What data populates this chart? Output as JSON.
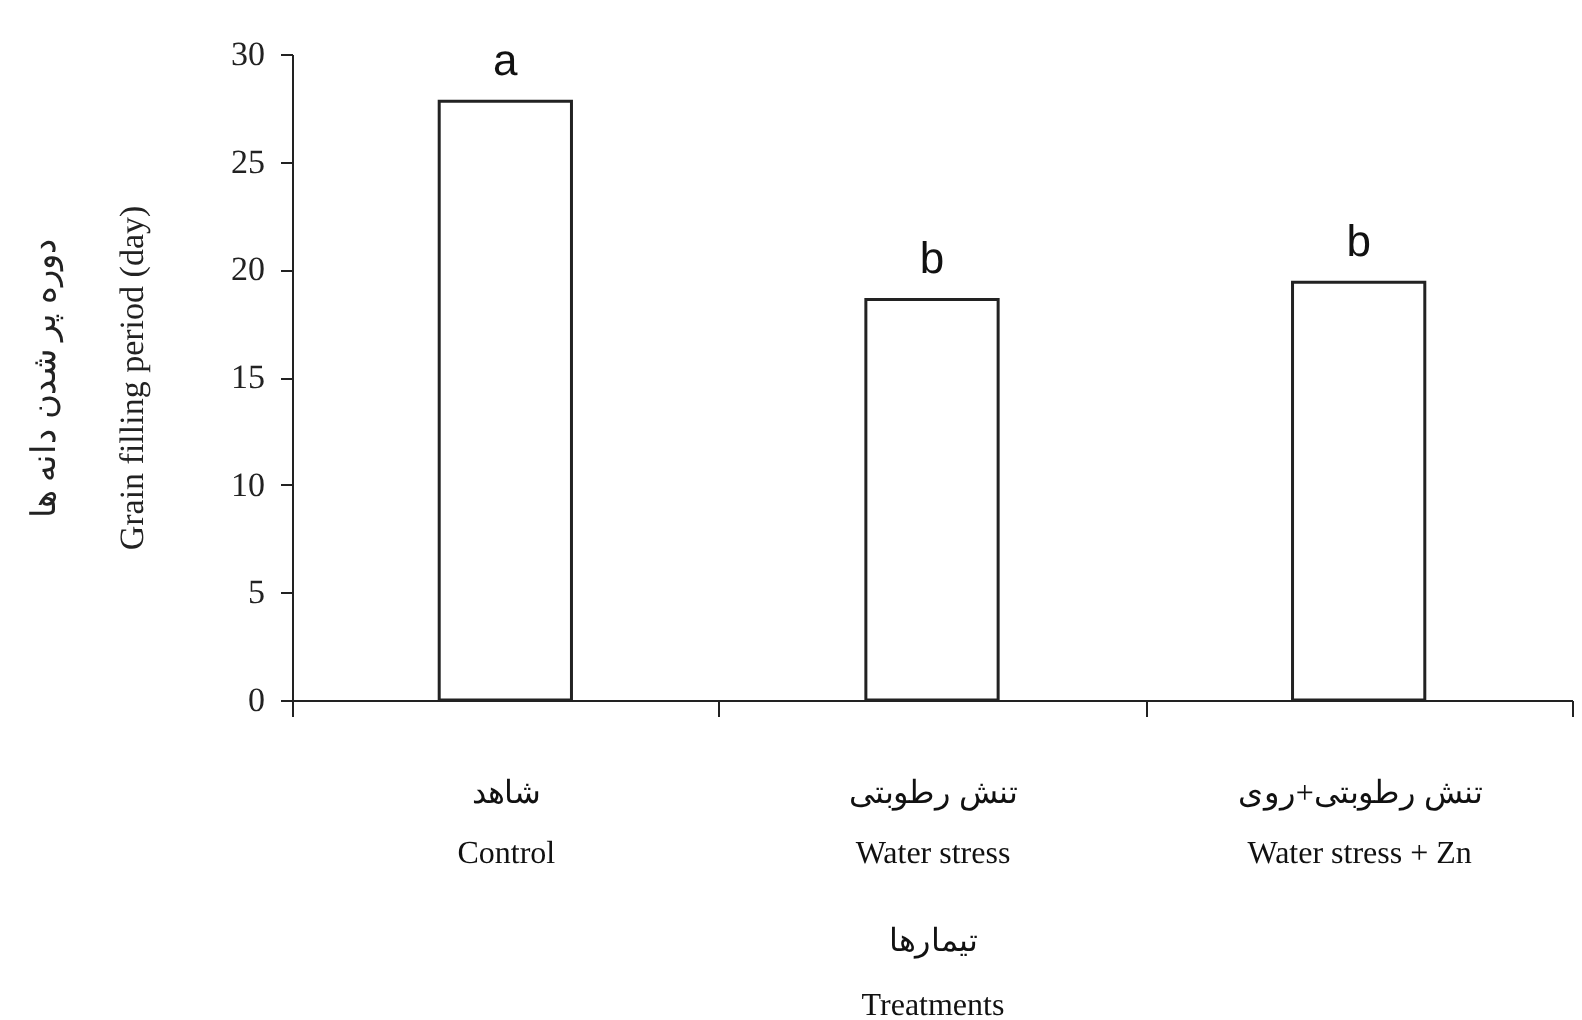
{
  "chart_data": {
    "type": "bar",
    "categories": [
      "شاهد\nControl",
      "تنش رطوبتی\nWater stress",
      "تنش رطوبتی+روی\nWater stress + Zn"
    ],
    "values": [
      27.8,
      18.6,
      19.4
    ],
    "color": "#ffffff",
    "xlabel": "تیمارها\nTreatments",
    "ylabel": "دوره پر شدن دانه ها\nGrain filling  period (day)",
    "ylim": [
      0,
      30
    ],
    "yticks": [
      0,
      5,
      10,
      15,
      20,
      25,
      30
    ],
    "annotations": [
      {
        "text": "a",
        "x": "شاهد\nControl",
        "y": 27.8
      },
      {
        "text": "b",
        "x": "تنش رطوبتی\nWater stress",
        "y": 18.6
      },
      {
        "text": "b",
        "x": "تنش رطوبتی+روی\nWater stress + Zn",
        "y": 19.4
      }
    ]
  }
}
